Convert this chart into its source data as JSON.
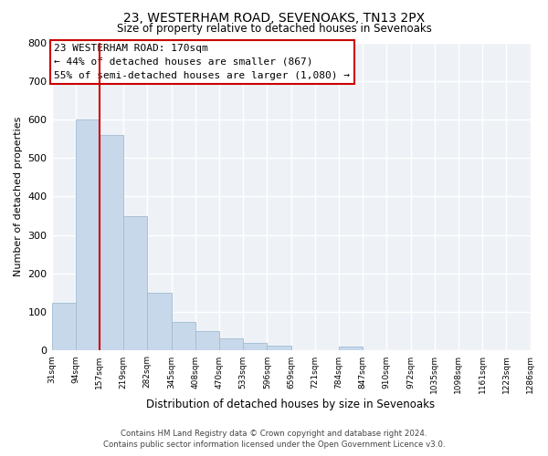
{
  "title": "23, WESTERHAM ROAD, SEVENOAKS, TN13 2PX",
  "subtitle": "Size of property relative to detached houses in Sevenoaks",
  "xlabel": "Distribution of detached houses by size in Sevenoaks",
  "ylabel": "Number of detached properties",
  "bar_color": "#c8d8eb",
  "bar_edge_color": "#a0bcd0",
  "vline_x": 2,
  "vline_color": "#cc0000",
  "bins": [
    "31sqm",
    "94sqm",
    "157sqm",
    "219sqm",
    "282sqm",
    "345sqm",
    "408sqm",
    "470sqm",
    "533sqm",
    "596sqm",
    "659sqm",
    "721sqm",
    "784sqm",
    "847sqm",
    "910sqm",
    "972sqm",
    "1035sqm",
    "1098sqm",
    "1161sqm",
    "1223sqm",
    "1286sqm"
  ],
  "bar_heights": [
    125,
    600,
    560,
    350,
    150,
    75,
    50,
    33,
    20,
    13,
    0,
    0,
    10,
    0,
    0,
    0,
    0,
    0,
    0,
    0,
    0
  ],
  "ylim": [
    0,
    800
  ],
  "yticks": [
    0,
    100,
    200,
    300,
    400,
    500,
    600,
    700,
    800
  ],
  "annotation_line1": "23 WESTERHAM ROAD: 170sqm",
  "annotation_line2": "← 44% of detached houses are smaller (867)",
  "annotation_line3": "55% of semi-detached houses are larger (1,080) →",
  "footer_line1": "Contains HM Land Registry data © Crown copyright and database right 2024.",
  "footer_line2": "Contains public sector information licensed under the Open Government Licence v3.0.",
  "background_color": "#eef2f7",
  "grid_color": "#ffffff",
  "fig_bg_color": "#ffffff"
}
